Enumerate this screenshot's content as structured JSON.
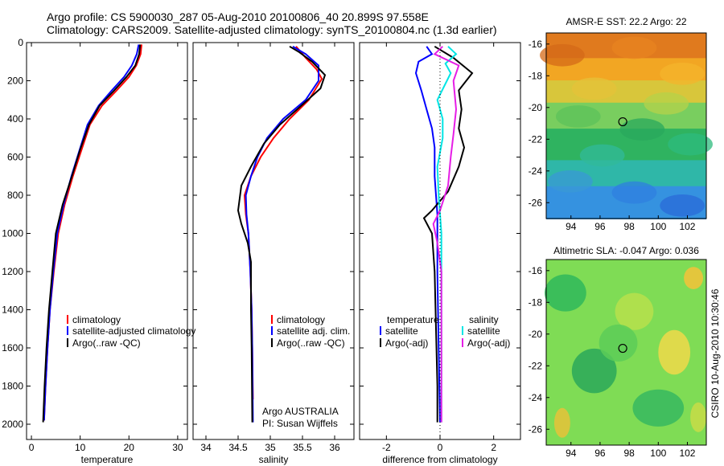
{
  "title_line1": "Argo profile: CS 5900030_287 05-Aug-2010 20100806_40 20.899S 97.558E",
  "title_line2": "Climatology: CARS2009. Satellite-adjusted climatology: synTS_20100804.nc (1.3d earlier)",
  "side_label": "CSIRO 10-Aug-2010 10:30:46",
  "colors": {
    "climatology": "#ff0000",
    "satellite": "#0000ff",
    "argo": "#000000",
    "salinity_satellite": "#00e5e5",
    "salinity_argo": "#e61ee6"
  },
  "chart_data": [
    {
      "type": "line",
      "xlabel": "temperature",
      "ylabel": "",
      "xlim": [
        -1,
        32
      ],
      "ylim": [
        2080,
        0
      ],
      "xticks": [
        "0",
        "10",
        "20",
        "30"
      ],
      "yticks": [
        "0",
        "200",
        "400",
        "600",
        "800",
        "1000",
        "1200",
        "1400",
        "1600",
        "1800",
        "2000"
      ],
      "legend": [
        "climatology",
        "satellite-adjusted climatology",
        "Argo(..raw -QC)"
      ],
      "legend_placement": "center-left",
      "series": [
        {
          "name": "climatology",
          "color": "#ff0000",
          "points": [
            [
              22.6,
              10
            ],
            [
              22.4,
              60
            ],
            [
              21.5,
              120
            ],
            [
              20.0,
              180
            ],
            [
              17.5,
              250
            ],
            [
              14.5,
              330
            ],
            [
              12.0,
              430
            ],
            [
              10.3,
              560
            ],
            [
              8.5,
              700
            ],
            [
              6.8,
              850
            ],
            [
              5.5,
              1000
            ],
            [
              4.6,
              1200
            ],
            [
              3.8,
              1400
            ],
            [
              3.3,
              1600
            ],
            [
              2.9,
              1800
            ],
            [
              2.6,
              1980
            ]
          ]
        },
        {
          "name": "satellite-adjusted climatology",
          "color": "#0000ff",
          "points": [
            [
              22.0,
              10
            ],
            [
              21.6,
              60
            ],
            [
              20.6,
              120
            ],
            [
              19.0,
              180
            ],
            [
              16.5,
              250
            ],
            [
              13.8,
              330
            ],
            [
              11.5,
              430
            ],
            [
              9.9,
              560
            ],
            [
              8.2,
              700
            ],
            [
              6.6,
              850
            ],
            [
              5.3,
              1000
            ],
            [
              4.5,
              1200
            ],
            [
              3.8,
              1400
            ],
            [
              3.3,
              1600
            ],
            [
              2.9,
              1800
            ],
            [
              2.6,
              1980
            ]
          ]
        },
        {
          "name": "Argo(..raw -QC)",
          "color": "#000000",
          "points": [
            [
              22.3,
              10
            ],
            [
              22.1,
              60
            ],
            [
              21.3,
              120
            ],
            [
              19.5,
              180
            ],
            [
              17.0,
              250
            ],
            [
              14.0,
              330
            ],
            [
              11.8,
              430
            ],
            [
              10.0,
              560
            ],
            [
              8.3,
              700
            ],
            [
              6.4,
              850
            ],
            [
              5.0,
              1000
            ],
            [
              4.3,
              1200
            ],
            [
              3.6,
              1400
            ],
            [
              3.1,
              1600
            ],
            [
              2.7,
              1800
            ],
            [
              2.4,
              1990
            ]
          ]
        }
      ]
    },
    {
      "type": "line",
      "xlabel": "salinity",
      "ylabel": "",
      "xlim": [
        33.8,
        36.3
      ],
      "ylim": [
        2080,
        0
      ],
      "xticks": [
        "34",
        "34.5",
        "35",
        "35.5",
        "36"
      ],
      "legend": [
        "climatology",
        "satellite adj. clim.",
        "Argo(..raw -QC)"
      ],
      "legend_placement": "center-left",
      "annotations": [
        "Argo AUSTRALIA",
        "PI: Susan Wijffels"
      ],
      "series": [
        {
          "name": "climatology",
          "color": "#ff0000",
          "points": [
            [
              35.4,
              20
            ],
            [
              35.55,
              80
            ],
            [
              35.72,
              140
            ],
            [
              35.8,
              190
            ],
            [
              35.6,
              300
            ],
            [
              35.3,
              400
            ],
            [
              35.05,
              500
            ],
            [
              34.85,
              600
            ],
            [
              34.7,
              700
            ],
            [
              34.6,
              800
            ],
            [
              34.62,
              900
            ],
            [
              34.66,
              1000
            ],
            [
              34.69,
              1200
            ],
            [
              34.71,
              1400
            ],
            [
              34.72,
              1600
            ],
            [
              34.73,
              1870
            ]
          ]
        },
        {
          "name": "satellite adj. clim.",
          "color": "#0000ff",
          "points": [
            [
              35.35,
              20
            ],
            [
              35.55,
              60
            ],
            [
              35.75,
              120
            ],
            [
              35.75,
              200
            ],
            [
              35.55,
              300
            ],
            [
              35.2,
              400
            ],
            [
              34.95,
              500
            ],
            [
              34.8,
              600
            ],
            [
              34.7,
              700
            ],
            [
              34.62,
              800
            ],
            [
              34.63,
              900
            ],
            [
              34.66,
              1000
            ],
            [
              34.69,
              1200
            ],
            [
              34.71,
              1400
            ],
            [
              34.72,
              1600
            ],
            [
              34.73,
              1990
            ]
          ]
        },
        {
          "name": "Argo(..raw -QC)",
          "color": "#000000",
          "points": [
            [
              35.3,
              20
            ],
            [
              35.45,
              50
            ],
            [
              35.65,
              100
            ],
            [
              35.85,
              170
            ],
            [
              35.78,
              240
            ],
            [
              35.45,
              340
            ],
            [
              35.15,
              430
            ],
            [
              34.9,
              530
            ],
            [
              34.7,
              650
            ],
            [
              34.55,
              750
            ],
            [
              34.5,
              880
            ],
            [
              34.55,
              950
            ],
            [
              34.65,
              1050
            ],
            [
              34.7,
              1150
            ],
            [
              34.7,
              1400
            ],
            [
              34.71,
              1600
            ],
            [
              34.72,
              1990
            ]
          ]
        }
      ]
    },
    {
      "type": "line",
      "xlabel": "difference from climatology",
      "ylabel": "",
      "xlim": [
        -3,
        3
      ],
      "ylim": [
        2080,
        0
      ],
      "xticks": [
        "-2",
        "0",
        "2"
      ],
      "legend": [
        "temperature",
        "satellite",
        "Argo(-adj)",
        "salinity",
        "satellite",
        "Argo(-adj)"
      ],
      "legend_placement": "center",
      "series": [
        {
          "name": "satellite",
          "color": "#0000ff",
          "points": [
            [
              -0.5,
              20
            ],
            [
              -0.3,
              60
            ],
            [
              -0.8,
              100
            ],
            [
              -0.9,
              160
            ],
            [
              -0.7,
              250
            ],
            [
              -0.5,
              350
            ],
            [
              -0.3,
              450
            ],
            [
              -0.2,
              550
            ],
            [
              -0.2,
              700
            ],
            [
              -0.1,
              900
            ],
            [
              -0.1,
              1200
            ],
            [
              -0.05,
              1600
            ],
            [
              0,
              1990
            ]
          ]
        },
        {
          "name": "Argo(-adj)",
          "color": "#000000",
          "points": [
            [
              -0.2,
              20
            ],
            [
              0.5,
              80
            ],
            [
              1.2,
              160
            ],
            [
              0.7,
              250
            ],
            [
              0.8,
              350
            ],
            [
              0.7,
              450
            ],
            [
              0.9,
              550
            ],
            [
              0.7,
              650
            ],
            [
              0.3,
              780
            ],
            [
              -0.3,
              880
            ],
            [
              -0.6,
              920
            ],
            [
              -0.3,
              1000
            ],
            [
              -0.2,
              1200
            ],
            [
              -0.15,
              1500
            ],
            [
              -0.1,
              1800
            ],
            [
              -0.1,
              1990
            ]
          ]
        },
        {
          "name": "satellite",
          "color": "#00e5e5",
          "points": [
            [
              0.3,
              20
            ],
            [
              0.6,
              60
            ],
            [
              0.2,
              110
            ],
            [
              0.4,
              160
            ],
            [
              -0.1,
              300
            ],
            [
              0.1,
              400
            ],
            [
              0.1,
              500
            ],
            [
              -0.1,
              650
            ],
            [
              -0.05,
              800
            ],
            [
              0.05,
              1000
            ],
            [
              0.05,
              1300
            ],
            [
              0.05,
              1700
            ],
            [
              0.05,
              1990
            ]
          ]
        },
        {
          "name": "Argo(-adj)",
          "color": "#e61ee6",
          "points": [
            [
              0.1,
              20
            ],
            [
              -0.2,
              60
            ],
            [
              0.7,
              120
            ],
            [
              0.5,
              200
            ],
            [
              0.6,
              350
            ],
            [
              0.5,
              480
            ],
            [
              0.4,
              600
            ],
            [
              0.3,
              750
            ],
            [
              0.0,
              880
            ],
            [
              -0.25,
              950
            ],
            [
              -0.1,
              1050
            ],
            [
              0.05,
              1200
            ],
            [
              0.05,
              1500
            ],
            [
              0.05,
              1800
            ],
            [
              0.05,
              1990
            ]
          ]
        }
      ]
    },
    {
      "type": "heatmap",
      "title": "AMSR-E SST: 22.2 Argo: 22",
      "xlim": [
        92.3,
        103.3
      ],
      "ylim": [
        -27,
        -15.3
      ],
      "xticks": [
        "94",
        "96",
        "98",
        "100",
        "102"
      ],
      "yticks": [
        "-16",
        "-18",
        "-20",
        "-22",
        "-24",
        "-26"
      ],
      "marker": {
        "lon": 97.558,
        "lat": -20.899
      },
      "bands": [
        {
          "color": "#e07a1e",
          "share": 0.14
        },
        {
          "color": "#f2a623",
          "share": 0.12
        },
        {
          "color": "#d8c63b",
          "share": 0.12
        },
        {
          "color": "#79ce5f",
          "share": 0.14
        },
        {
          "color": "#2fb360",
          "share": 0.17
        },
        {
          "color": "#2fb7a8",
          "share": 0.14
        },
        {
          "color": "#3592e0",
          "share": 0.17
        }
      ]
    },
    {
      "type": "heatmap",
      "title": "Altimetric SLA: -0.047 Argo: 0.036",
      "xlim": [
        92.3,
        103.3
      ],
      "ylim": [
        -27,
        -15.3
      ],
      "xticks": [
        "94",
        "96",
        "98",
        "100",
        "102"
      ],
      "yticks": [
        "-16",
        "-18",
        "-20",
        "-22",
        "-24",
        "-26"
      ],
      "marker": {
        "lon": 97.558,
        "lat": -20.899
      },
      "background": "#7fdc55"
    }
  ]
}
